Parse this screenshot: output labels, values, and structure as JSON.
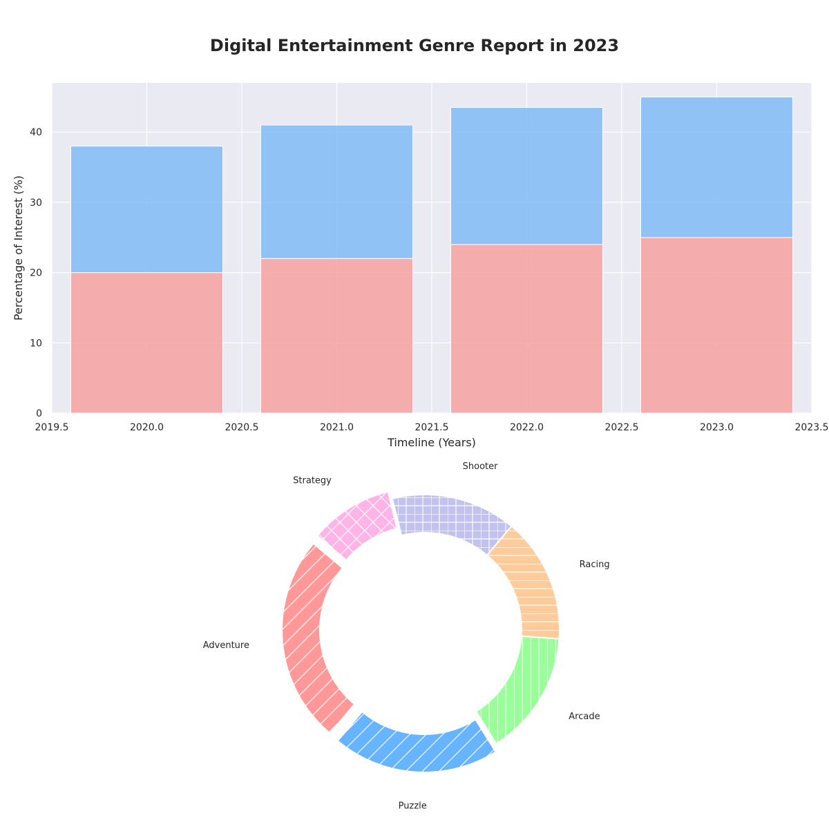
{
  "title": "Digital Entertainment Genre Report in 2023",
  "colors": {
    "plot_bg": "#EAEAF2",
    "grid": "#FFFFFF",
    "axis_text": "#262626",
    "bar_bottom": "#F7A1A1",
    "bar_top": "#80BBF7"
  },
  "chart_data": [
    {
      "type": "bar",
      "stacked": true,
      "x": [
        2020,
        2021,
        2022,
        2023
      ],
      "series": [
        {
          "values": [
            20,
            22,
            24,
            25
          ],
          "color": "#F7A1A1"
        },
        {
          "values": [
            18,
            19,
            19.5,
            20
          ],
          "color": "#80BBF7"
        }
      ],
      "xlabel": "Timeline (Years)",
      "ylabel": "Percentage of Interest (%)",
      "xlim": [
        2019.5,
        2023.5
      ],
      "ylim": [
        0,
        47
      ],
      "xticks": [
        "2019.5",
        "2020.0",
        "2020.5",
        "2021.0",
        "2021.5",
        "2022.0",
        "2022.5",
        "2023.0",
        "2023.5"
      ],
      "yticks": [
        "0",
        "10",
        "20",
        "30",
        "40"
      ],
      "grid": true
    },
    {
      "type": "pie",
      "donut": true,
      "labels": [
        "Adventure",
        "Puzzle",
        "Arcade",
        "Racing",
        "Shooter",
        "Strategy"
      ],
      "values": [
        25,
        20,
        15,
        15,
        15,
        10
      ],
      "colors": [
        "#FF9999",
        "#66B3FF",
        "#99FF99",
        "#FFCC99",
        "#C2C2F0",
        "#FFB3E6"
      ],
      "hatches": [
        "diagonal",
        "diagonal",
        "vertical",
        "horizontal",
        "grid",
        "diagonal-cross"
      ],
      "start_angle_deg": 140
    }
  ]
}
